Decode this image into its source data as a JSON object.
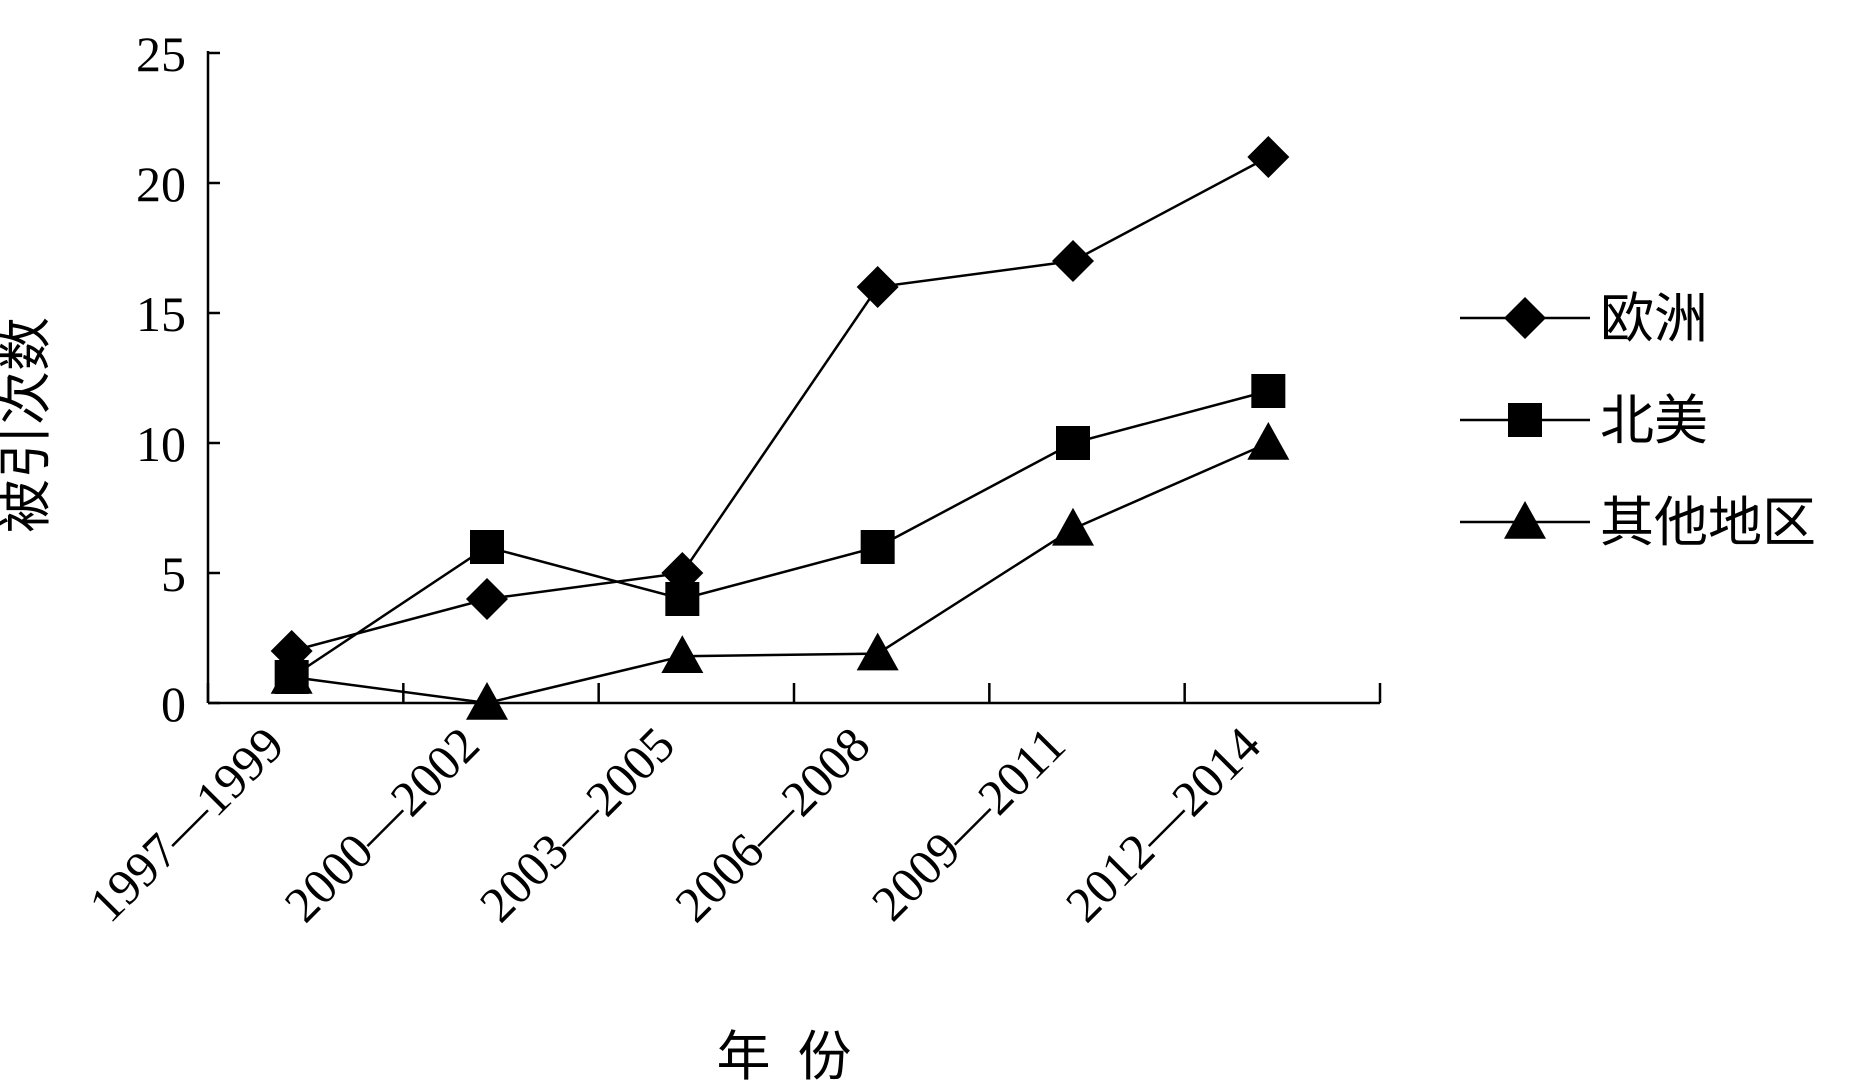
{
  "chart_data": {
    "type": "line",
    "categories": [
      "1997—1999",
      "2000—2002",
      "2003—2005",
      "2006—2008",
      "2009—2011",
      "2012—2014"
    ],
    "series": [
      {
        "name": "欧洲",
        "marker": "diamond",
        "values": [
          2,
          4,
          5,
          16,
          17,
          21
        ]
      },
      {
        "name": "北美",
        "marker": "square",
        "values": [
          1,
          6,
          4,
          6,
          10,
          12
        ]
      },
      {
        "name": "其他地区",
        "marker": "triangle",
        "values": [
          1,
          0,
          1.8,
          1.9,
          6.7,
          10
        ]
      }
    ],
    "ylim": [
      0,
      25
    ],
    "yticks": [
      "0",
      "5",
      "10",
      "15",
      "20",
      "25"
    ],
    "xlabel": "年  份",
    "ylabel": "被引次数",
    "legend_position": "right",
    "grid": false,
    "line_color": "#000000"
  }
}
